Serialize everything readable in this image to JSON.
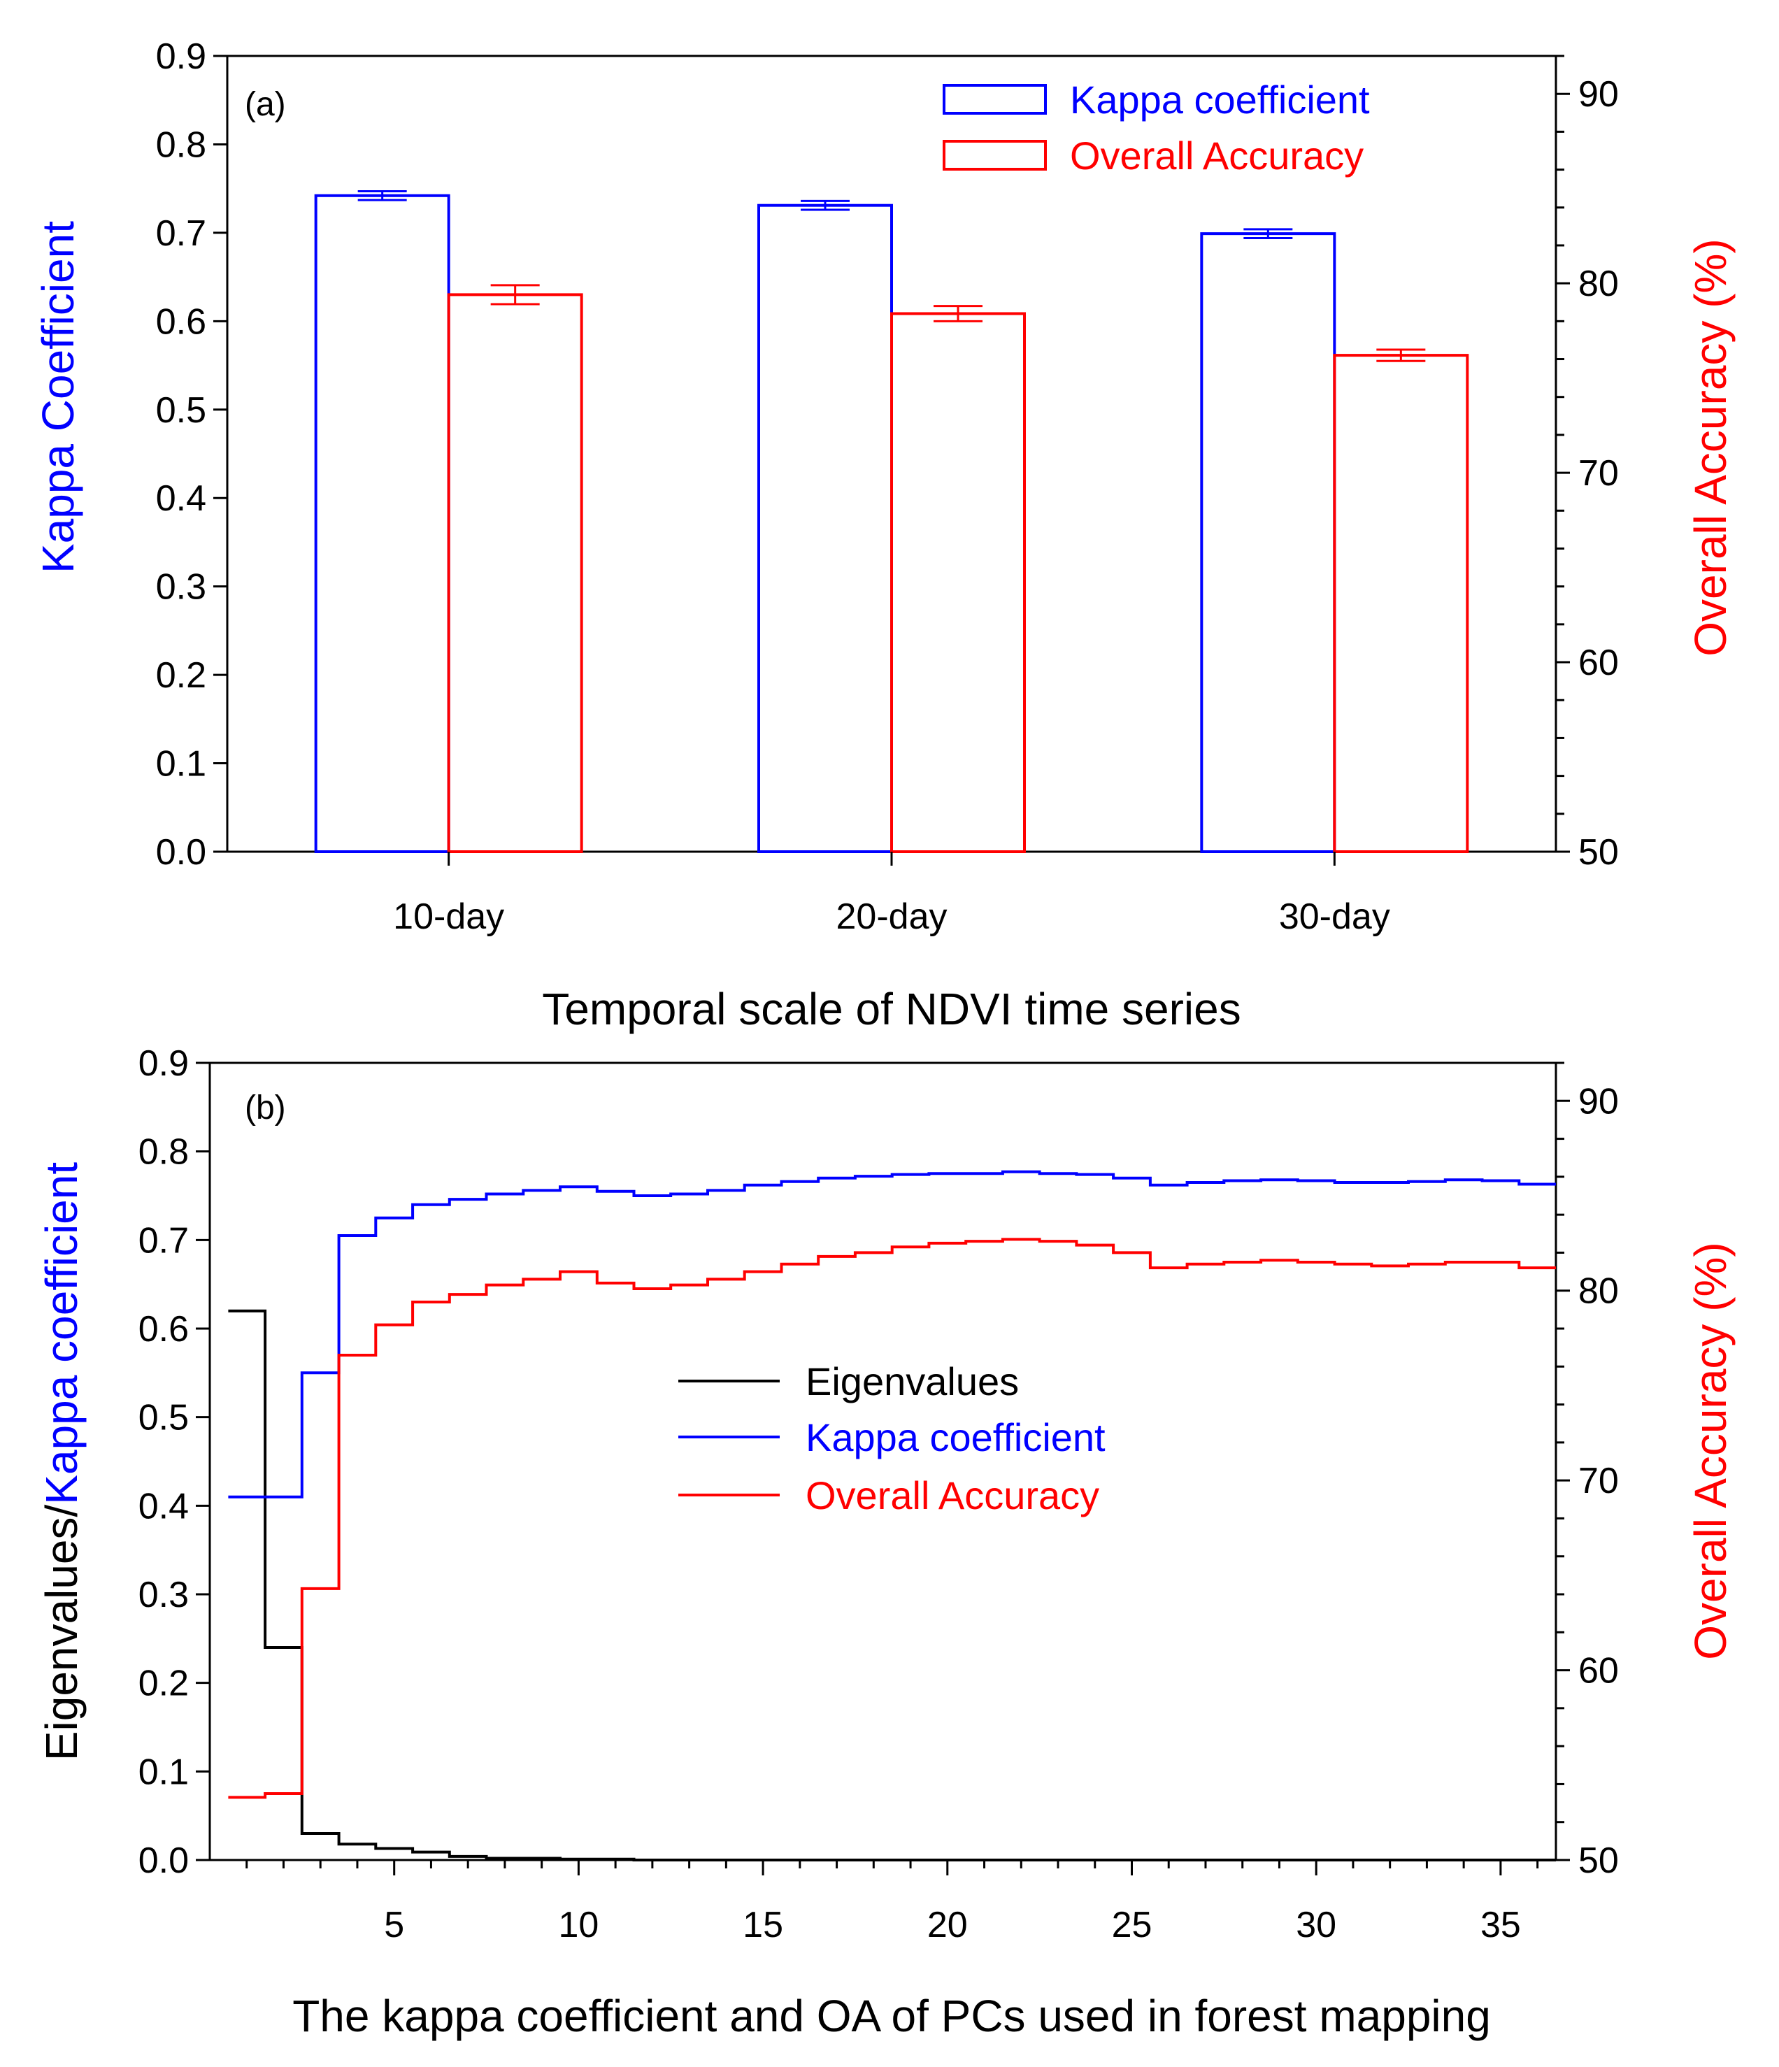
{
  "colors": {
    "kappa": "#0000ff",
    "oa": "#ff0000",
    "eigen": "#000000",
    "axis": "#000000"
  },
  "chart_data": [
    {
      "type": "bar",
      "panel_label": "(a)",
      "title": "",
      "categories": [
        "10-day",
        "20-day",
        "30-day"
      ],
      "xlabel": "Temporal scale of NDVI time series",
      "ylabel": "Kappa Coefficient",
      "y2label": "Overall Accuracy (%)",
      "ylim": [
        0,
        0.9
      ],
      "yticks": [
        "0.0",
        "0.1",
        "0.2",
        "0.3",
        "0.4",
        "0.5",
        "0.6",
        "0.7",
        "0.8",
        "0.9"
      ],
      "y2lim": [
        50,
        92
      ],
      "y2ticks": [
        "50",
        "60",
        "70",
        "80",
        "90"
      ],
      "series": [
        {
          "name": "Kappa coefficient",
          "axis": "left",
          "values": [
            0.742,
            0.731,
            0.699
          ],
          "errors": [
            0.005,
            0.005,
            0.005
          ]
        },
        {
          "name": "Overall Accuracy",
          "axis": "right",
          "values": [
            79.4,
            78.4,
            76.2
          ],
          "errors": [
            0.5,
            0.4,
            0.3
          ]
        }
      ],
      "legend": [
        "Kappa coefficient",
        "Overall Accuracy"
      ],
      "legend_position": "top-right"
    },
    {
      "type": "line",
      "step": true,
      "panel_label": "(b)",
      "title": "",
      "xlabel": "The kappa coefficient and OA of PCs used in forest mapping",
      "ylabel_parts": [
        "Eigenvalues/",
        "Kappa coefficient"
      ],
      "y2label": "Overall Accuracy (%)",
      "xlim": [
        0,
        36.5
      ],
      "xticks": [
        "5",
        "10",
        "15",
        "20",
        "25",
        "30",
        "35"
      ],
      "ylim": [
        0,
        0.9
      ],
      "yticks": [
        "0.0",
        "0.1",
        "0.2",
        "0.3",
        "0.4",
        "0.5",
        "0.6",
        "0.7",
        "0.8",
        "0.9"
      ],
      "y2lim": [
        50,
        92
      ],
      "y2ticks": [
        "50",
        "60",
        "70",
        "80",
        "90"
      ],
      "x": [
        1,
        2,
        3,
        4,
        5,
        6,
        7,
        8,
        9,
        10,
        11,
        12,
        13,
        14,
        15,
        16,
        17,
        18,
        19,
        20,
        21,
        22,
        23,
        24,
        25,
        26,
        27,
        28,
        29,
        30,
        31,
        32,
        33,
        34,
        35,
        36
      ],
      "series": [
        {
          "name": "Eigenvalues",
          "axis": "left",
          "values": [
            0.62,
            0.24,
            0.03,
            0.018,
            0.013,
            0.009,
            0.004,
            0.002,
            0.002,
            0.001,
            0.001,
            0,
            0,
            0,
            0,
            0,
            0,
            0,
            0,
            0,
            0,
            0,
            0,
            0,
            0,
            0,
            0,
            0,
            0,
            0,
            0,
            0,
            0,
            0,
            0,
            0
          ]
        },
        {
          "name": "Kappa coefficient",
          "axis": "left",
          "values": [
            0.41,
            0.41,
            0.55,
            0.705,
            0.725,
            0.74,
            0.746,
            0.752,
            0.756,
            0.76,
            0.755,
            0.75,
            0.752,
            0.756,
            0.762,
            0.766,
            0.77,
            0.772,
            0.774,
            0.775,
            0.775,
            0.777,
            0.775,
            0.774,
            0.77,
            0.762,
            0.765,
            0.767,
            0.768,
            0.767,
            0.765,
            0.765,
            0.766,
            0.768,
            0.767,
            0.763
          ]
        },
        {
          "name": "Overall Accuracy",
          "axis": "right",
          "values": [
            53.3,
            53.5,
            64.3,
            76.6,
            78.2,
            79.4,
            79.8,
            80.3,
            80.6,
            81.0,
            80.4,
            80.1,
            80.3,
            80.6,
            81.0,
            81.4,
            81.8,
            82.0,
            82.3,
            82.5,
            82.6,
            82.7,
            82.6,
            82.4,
            82.0,
            81.2,
            81.4,
            81.5,
            81.6,
            81.5,
            81.4,
            81.3,
            81.4,
            81.5,
            81.5,
            81.2
          ]
        }
      ],
      "legend": [
        "Eigenvalues",
        "Kappa coefficient",
        "Overall Accuracy"
      ],
      "legend_position": "center"
    }
  ]
}
